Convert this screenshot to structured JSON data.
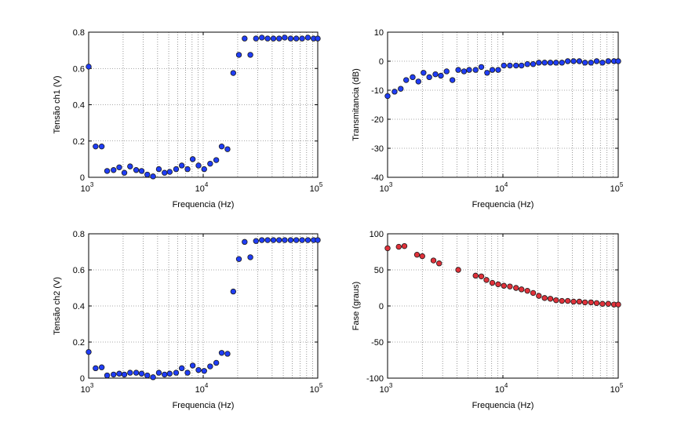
{
  "chart_data": [
    {
      "type": "scatter",
      "xscale": "log",
      "xlim": [
        1000,
        100000
      ],
      "ylim": [
        0,
        0.8
      ],
      "yticks": [
        "0",
        "0.2",
        "0.4",
        "0.6",
        "0.8"
      ],
      "xlabel": "Frequencia (Hz)",
      "ylabel": "Tensão ch1 (V)",
      "grid": true,
      "marker_color": "#1f3df5",
      "points": [
        [
          1000,
          0.61
        ],
        [
          1150,
          0.17
        ],
        [
          1300,
          0.17
        ],
        [
          1450,
          0.035
        ],
        [
          1650,
          0.04
        ],
        [
          1850,
          0.055
        ],
        [
          2050,
          0.025
        ],
        [
          2300,
          0.06
        ],
        [
          2600,
          0.04
        ],
        [
          2900,
          0.035
        ],
        [
          3250,
          0.015
        ],
        [
          3650,
          0.005
        ],
        [
          4100,
          0.045
        ],
        [
          4600,
          0.025
        ],
        [
          5100,
          0.03
        ],
        [
          5800,
          0.045
        ],
        [
          6500,
          0.065
        ],
        [
          7300,
          0.045
        ],
        [
          8100,
          0.1
        ],
        [
          9100,
          0.065
        ],
        [
          10200,
          0.045
        ],
        [
          11500,
          0.075
        ],
        [
          13000,
          0.095
        ],
        [
          14500,
          0.17
        ],
        [
          16300,
          0.155
        ],
        [
          18300,
          0.575
        ],
        [
          20500,
          0.675
        ],
        [
          23000,
          0.765
        ],
        [
          25800,
          0.675
        ],
        [
          28900,
          0.765
        ],
        [
          32500,
          0.77
        ],
        [
          36500,
          0.765
        ],
        [
          41000,
          0.765
        ],
        [
          46000,
          0.765
        ],
        [
          51500,
          0.77
        ],
        [
          58000,
          0.765
        ],
        [
          65000,
          0.765
        ],
        [
          73000,
          0.765
        ],
        [
          82000,
          0.77
        ],
        [
          92000,
          0.765
        ],
        [
          100000,
          0.765
        ]
      ]
    },
    {
      "type": "scatter",
      "xscale": "log",
      "xlim": [
        1000,
        100000
      ],
      "ylim": [
        -40,
        10
      ],
      "yticks": [
        "-40",
        "-30",
        "-20",
        "-10",
        "0",
        "10"
      ],
      "xlabel": "Frequencia (Hz)",
      "ylabel": "Transmitancia (dB)",
      "grid": true,
      "marker_color": "#1f3df5",
      "points": [
        [
          1000,
          -12
        ],
        [
          1150,
          -10.5
        ],
        [
          1300,
          -9.5
        ],
        [
          1450,
          -6.5
        ],
        [
          1650,
          -5.5
        ],
        [
          1850,
          -7
        ],
        [
          2050,
          -4
        ],
        [
          2300,
          -5.5
        ],
        [
          2600,
          -4.5
        ],
        [
          2900,
          -5
        ],
        [
          3250,
          -3.5
        ],
        [
          3650,
          -6.5
        ],
        [
          4100,
          -3
        ],
        [
          4600,
          -3.5
        ],
        [
          5100,
          -3
        ],
        [
          5800,
          -3
        ],
        [
          6500,
          -2
        ],
        [
          7300,
          -4
        ],
        [
          8100,
          -3
        ],
        [
          9100,
          -3
        ],
        [
          10200,
          -1.5
        ],
        [
          11500,
          -1.5
        ],
        [
          13000,
          -1.5
        ],
        [
          14500,
          -1.5
        ],
        [
          16300,
          -1
        ],
        [
          18300,
          -1
        ],
        [
          20500,
          -0.5
        ],
        [
          23000,
          -0.5
        ],
        [
          25800,
          -0.5
        ],
        [
          28900,
          -0.5
        ],
        [
          32500,
          -0.5
        ],
        [
          36500,
          0
        ],
        [
          41000,
          0
        ],
        [
          46000,
          0
        ],
        [
          51500,
          -0.5
        ],
        [
          58000,
          -0.5
        ],
        [
          65000,
          0
        ],
        [
          73000,
          -0.5
        ],
        [
          82000,
          0
        ],
        [
          92000,
          0
        ],
        [
          100000,
          0
        ]
      ]
    },
    {
      "type": "scatter",
      "xscale": "log",
      "xlim": [
        1000,
        100000
      ],
      "ylim": [
        0,
        0.8
      ],
      "yticks": [
        "0",
        "0.2",
        "0.4",
        "0.6",
        "0.8"
      ],
      "xlabel": "Frequencia (Hz)",
      "ylabel": "Tensão ch2 (V)",
      "grid": true,
      "marker_color": "#1f3df5",
      "points": [
        [
          1000,
          0.145
        ],
        [
          1150,
          0.055
        ],
        [
          1300,
          0.06
        ],
        [
          1450,
          0.015
        ],
        [
          1650,
          0.02
        ],
        [
          1850,
          0.025
        ],
        [
          2050,
          0.02
        ],
        [
          2300,
          0.03
        ],
        [
          2600,
          0.03
        ],
        [
          2900,
          0.025
        ],
        [
          3250,
          0.015
        ],
        [
          3650,
          0.005
        ],
        [
          4100,
          0.03
        ],
        [
          4600,
          0.02
        ],
        [
          5100,
          0.025
        ],
        [
          5800,
          0.03
        ],
        [
          6500,
          0.055
        ],
        [
          7300,
          0.03
        ],
        [
          8100,
          0.07
        ],
        [
          9100,
          0.045
        ],
        [
          10200,
          0.04
        ],
        [
          11500,
          0.065
        ],
        [
          13000,
          0.085
        ],
        [
          14500,
          0.14
        ],
        [
          16300,
          0.135
        ],
        [
          18300,
          0.48
        ],
        [
          20500,
          0.66
        ],
        [
          23000,
          0.755
        ],
        [
          25800,
          0.67
        ],
        [
          28900,
          0.76
        ],
        [
          32500,
          0.765
        ],
        [
          36500,
          0.765
        ],
        [
          41000,
          0.765
        ],
        [
          46000,
          0.765
        ],
        [
          51500,
          0.765
        ],
        [
          58000,
          0.765
        ],
        [
          65000,
          0.765
        ],
        [
          73000,
          0.765
        ],
        [
          82000,
          0.765
        ],
        [
          92000,
          0.765
        ],
        [
          100000,
          0.765
        ]
      ]
    },
    {
      "type": "scatter",
      "xscale": "log",
      "xlim": [
        1000,
        100000
      ],
      "ylim": [
        -100,
        100
      ],
      "yticks": [
        "-100",
        "-50",
        "0",
        "50",
        "100"
      ],
      "xlabel": "Frequencia (Hz)",
      "ylabel": "Fase (graus)",
      "grid": true,
      "marker_color": "#e0313a",
      "points": [
        [
          1000,
          80
        ],
        [
          1250,
          82
        ],
        [
          1400,
          83
        ],
        [
          1800,
          71
        ],
        [
          2000,
          69
        ],
        [
          2500,
          63
        ],
        [
          2800,
          59
        ],
        [
          4100,
          50
        ],
        [
          5800,
          42
        ],
        [
          6500,
          41
        ],
        [
          7200,
          36
        ],
        [
          8100,
          32
        ],
        [
          9100,
          30
        ],
        [
          10200,
          28
        ],
        [
          11500,
          27
        ],
        [
          13000,
          25
        ],
        [
          14500,
          23
        ],
        [
          16300,
          21
        ],
        [
          18300,
          18
        ],
        [
          20500,
          14
        ],
        [
          23000,
          11
        ],
        [
          25800,
          10
        ],
        [
          28900,
          8
        ],
        [
          32500,
          7
        ],
        [
          36500,
          7
        ],
        [
          41000,
          6
        ],
        [
          46000,
          6
        ],
        [
          51500,
          5
        ],
        [
          58000,
          5
        ],
        [
          65000,
          4
        ],
        [
          73000,
          3
        ],
        [
          82000,
          3
        ],
        [
          92000,
          2
        ],
        [
          100000,
          2
        ]
      ]
    }
  ]
}
